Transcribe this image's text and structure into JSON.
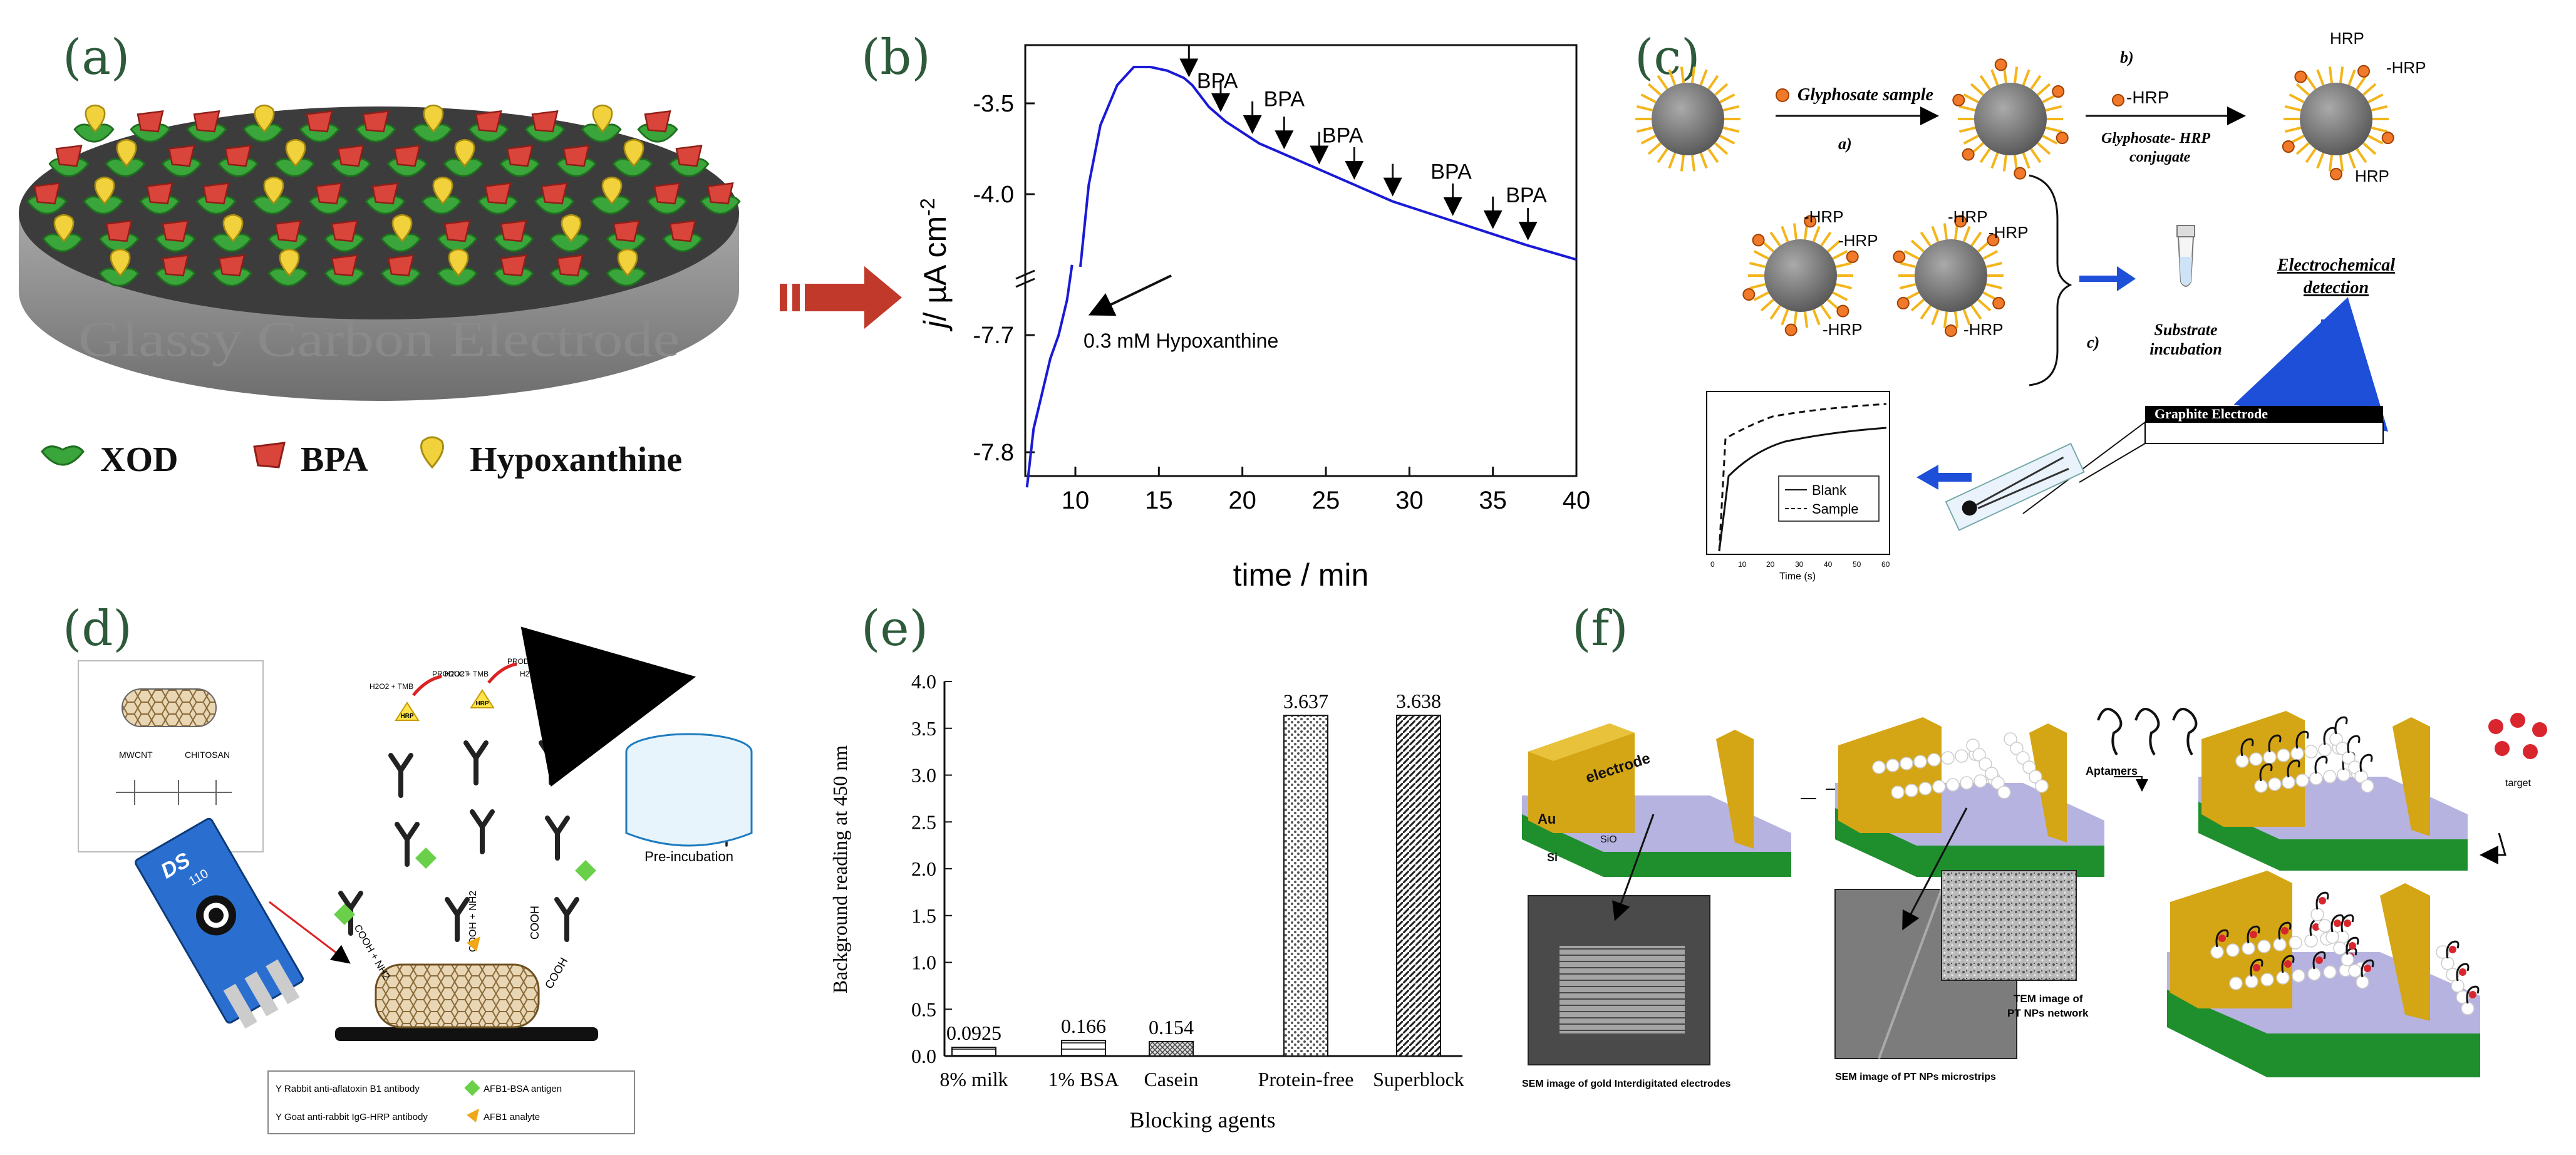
{
  "panel_labels": [
    "(a)",
    "(b)",
    "(c)",
    "(d)",
    "(e)",
    "(f)"
  ],
  "colors": {
    "label_green": "#2d5a3a",
    "trace_blue": "#1a1ad6",
    "arrow_red": "#c0392b",
    "gold": "#d4a514",
    "lavender": "#b7b3e0",
    "green_layer": "#1f8f2e"
  },
  "panel_a": {
    "electrode_label": "Glassy Carbon Electrode",
    "legend": [
      {
        "icon": "xod-icon",
        "label": "XOD"
      },
      {
        "icon": "bpa-icon",
        "label": "BPA"
      },
      {
        "icon": "hypoxanthine-icon",
        "label": "Hypoxanthine"
      }
    ]
  },
  "panel_b": {
    "xlabel": "time / min",
    "ylabel_j": "j",
    "ylabel_unit": "/ µA cm",
    "ylabel_exp": "-2",
    "annotation": "0.3 mM Hypoxanthine",
    "bpa_labels": [
      "BPA",
      "BPA",
      "BPA",
      "BPA",
      "BPA"
    ],
    "chart_data": {
      "type": "line",
      "title": "",
      "xlabel": "time / min",
      "ylabel": "j / µA cm-2",
      "xlim": [
        7,
        40
      ],
      "x_ticks": [
        "10",
        "15",
        "20",
        "25",
        "30",
        "35",
        "40"
      ],
      "y_ticks_upper": [
        "-3.5",
        "-4.0"
      ],
      "y_ticks_lower": [
        "-7.7",
        "-7.8"
      ],
      "y_axis_break": true,
      "series": [
        {
          "name": "response",
          "segment": "upper",
          "x": [
            10.3,
            10.8,
            11.5,
            12.5,
            13.5,
            14.5,
            15.5,
            16.5,
            17.0,
            18.0,
            19.0,
            20.0,
            21.0,
            23.0,
            25.0,
            27.0,
            29.0,
            31.0,
            33.0,
            35.0,
            37.0,
            38.5,
            40.0
          ],
          "y": [
            -4.4,
            -3.95,
            -3.62,
            -3.4,
            -3.3,
            -3.3,
            -3.32,
            -3.36,
            -3.4,
            -3.52,
            -3.6,
            -3.66,
            -3.72,
            -3.8,
            -3.88,
            -3.96,
            -4.04,
            -4.1,
            -4.16,
            -4.22,
            -4.28,
            -4.32,
            -4.36
          ]
        },
        {
          "name": "response",
          "segment": "lower",
          "x": [
            7.1,
            7.5,
            8.0,
            8.5,
            9.0,
            9.5,
            9.8
          ],
          "y": [
            -7.83,
            -7.78,
            -7.75,
            -7.72,
            -7.7,
            -7.67,
            -7.64
          ]
        }
      ],
      "annotations": [
        {
          "text": "0.3 mM Hypoxanthine",
          "x": 9.8,
          "y": -7.66
        },
        {
          "text": "BPA",
          "x": 18.5,
          "y": -3.45
        },
        {
          "text": "BPA",
          "x": 22.5,
          "y": -3.55
        },
        {
          "text": "BPA",
          "x": 26.0,
          "y": -3.75
        },
        {
          "text": "BPA",
          "x": 32.5,
          "y": -3.95
        },
        {
          "text": "BPA",
          "x": 37.0,
          "y": -4.08
        }
      ]
    }
  },
  "panel_c": {
    "glyphosate_sample": "Glyphosate sample",
    "step_a": "a)",
    "step_b": "b)",
    "step_c": "c)",
    "hrp": "HRP",
    "hrp_dash": "-HRP",
    "conjugate_line1": "Glyphosate- HRP",
    "conjugate_line2": "conjugate",
    "electrochemical_line1": "Electrochemical",
    "electrochemical_line2": "detection",
    "substrate_line1": "Substrate",
    "substrate_line2": "incubation",
    "graphite_electrode": "Graphite Electrode",
    "inset_legend": [
      "Blank",
      "Sample"
    ],
    "inset_xlabel": "Time (s)",
    "inset_x_ticks": [
      "0",
      "10",
      "20",
      "30",
      "40",
      "50",
      "60"
    ]
  },
  "panel_d": {
    "device_text": "DS",
    "device_num": "110",
    "preincubation": "Pre-incubation",
    "nanotube_labels": [
      "MWCNT",
      "CHITOSAN"
    ],
    "surface_labels": [
      "COOH",
      "COOH",
      "COOH + NH2",
      "COOH + NH2"
    ],
    "product": "PRODUCT",
    "h2o2_tmb": "H2O2 + TMB",
    "hrp_tag": "HRP",
    "legend": [
      "Rabbit anti-aflatoxin B1 antibody",
      "AFB1-BSA antigen",
      "Goat anti-rabbit IgG-HRP antibody",
      "AFB1 analyte"
    ]
  },
  "panel_e": {
    "chart_data": {
      "type": "bar",
      "title": "",
      "xlabel": "Blocking agents",
      "ylabel": "Background reading at 450 nm",
      "ylim": [
        0,
        4.0
      ],
      "y_ticks": [
        "0.0",
        "0.5",
        "1.0",
        "1.5",
        "2.0",
        "2.5",
        "3.0",
        "3.5",
        "4.0"
      ],
      "categories": [
        "8% milk",
        "1% BSA",
        "Casein",
        "Protein-free",
        "Superblock"
      ],
      "values": [
        0.0925,
        0.166,
        0.154,
        3.637,
        3.638
      ],
      "data_labels": [
        "0.0925",
        "0.166",
        "0.154",
        "3.637",
        "3.638"
      ]
    }
  },
  "panel_f": {
    "electrode": "electrode",
    "au": "Au",
    "sio2": "SiO",
    "si": "Si",
    "aptamers": "Aptamers",
    "target": "target",
    "tem_line1": "TEM image of",
    "tem_line2": "PT NPs network",
    "sem_gold": "SEM image of gold Interdigitated electrodes",
    "sem_pt": "SEM image of PT NPs microstrips"
  }
}
